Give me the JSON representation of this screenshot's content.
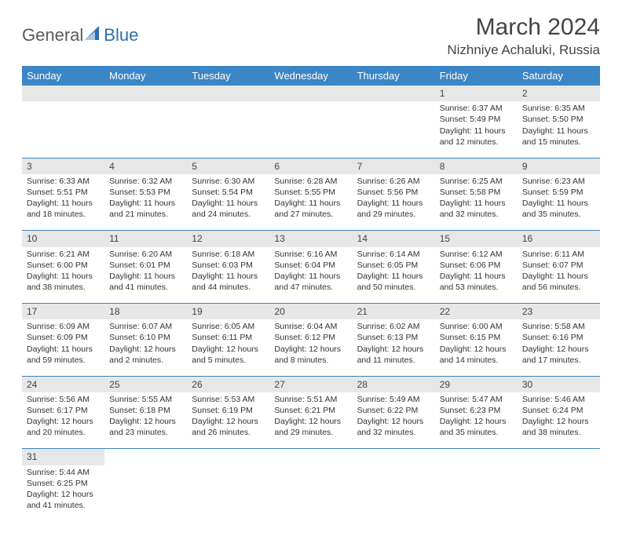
{
  "logo": {
    "text1": "General",
    "text2": "Blue"
  },
  "title": "March 2024",
  "subtitle": "Nizhniye Achaluki, Russia",
  "colors": {
    "header_bg": "#3b86c6",
    "header_text": "#ffffff",
    "daynum_bg": "#e7e7e7",
    "border": "#3b86c6",
    "logo_gray": "#5a5a5a",
    "logo_blue": "#2d6fb0"
  },
  "dayHeaders": [
    "Sunday",
    "Monday",
    "Tuesday",
    "Wednesday",
    "Thursday",
    "Friday",
    "Saturday"
  ],
  "weeks": [
    [
      null,
      null,
      null,
      null,
      null,
      {
        "n": "1",
        "sr": "Sunrise: 6:37 AM",
        "ss": "Sunset: 5:49 PM",
        "d1": "Daylight: 11 hours",
        "d2": "and 12 minutes."
      },
      {
        "n": "2",
        "sr": "Sunrise: 6:35 AM",
        "ss": "Sunset: 5:50 PM",
        "d1": "Daylight: 11 hours",
        "d2": "and 15 minutes."
      }
    ],
    [
      {
        "n": "3",
        "sr": "Sunrise: 6:33 AM",
        "ss": "Sunset: 5:51 PM",
        "d1": "Daylight: 11 hours",
        "d2": "and 18 minutes."
      },
      {
        "n": "4",
        "sr": "Sunrise: 6:32 AM",
        "ss": "Sunset: 5:53 PM",
        "d1": "Daylight: 11 hours",
        "d2": "and 21 minutes."
      },
      {
        "n": "5",
        "sr": "Sunrise: 6:30 AM",
        "ss": "Sunset: 5:54 PM",
        "d1": "Daylight: 11 hours",
        "d2": "and 24 minutes."
      },
      {
        "n": "6",
        "sr": "Sunrise: 6:28 AM",
        "ss": "Sunset: 5:55 PM",
        "d1": "Daylight: 11 hours",
        "d2": "and 27 minutes."
      },
      {
        "n": "7",
        "sr": "Sunrise: 6:26 AM",
        "ss": "Sunset: 5:56 PM",
        "d1": "Daylight: 11 hours",
        "d2": "and 29 minutes."
      },
      {
        "n": "8",
        "sr": "Sunrise: 6:25 AM",
        "ss": "Sunset: 5:58 PM",
        "d1": "Daylight: 11 hours",
        "d2": "and 32 minutes."
      },
      {
        "n": "9",
        "sr": "Sunrise: 6:23 AM",
        "ss": "Sunset: 5:59 PM",
        "d1": "Daylight: 11 hours",
        "d2": "and 35 minutes."
      }
    ],
    [
      {
        "n": "10",
        "sr": "Sunrise: 6:21 AM",
        "ss": "Sunset: 6:00 PM",
        "d1": "Daylight: 11 hours",
        "d2": "and 38 minutes."
      },
      {
        "n": "11",
        "sr": "Sunrise: 6:20 AM",
        "ss": "Sunset: 6:01 PM",
        "d1": "Daylight: 11 hours",
        "d2": "and 41 minutes."
      },
      {
        "n": "12",
        "sr": "Sunrise: 6:18 AM",
        "ss": "Sunset: 6:03 PM",
        "d1": "Daylight: 11 hours",
        "d2": "and 44 minutes."
      },
      {
        "n": "13",
        "sr": "Sunrise: 6:16 AM",
        "ss": "Sunset: 6:04 PM",
        "d1": "Daylight: 11 hours",
        "d2": "and 47 minutes."
      },
      {
        "n": "14",
        "sr": "Sunrise: 6:14 AM",
        "ss": "Sunset: 6:05 PM",
        "d1": "Daylight: 11 hours",
        "d2": "and 50 minutes."
      },
      {
        "n": "15",
        "sr": "Sunrise: 6:12 AM",
        "ss": "Sunset: 6:06 PM",
        "d1": "Daylight: 11 hours",
        "d2": "and 53 minutes."
      },
      {
        "n": "16",
        "sr": "Sunrise: 6:11 AM",
        "ss": "Sunset: 6:07 PM",
        "d1": "Daylight: 11 hours",
        "d2": "and 56 minutes."
      }
    ],
    [
      {
        "n": "17",
        "sr": "Sunrise: 6:09 AM",
        "ss": "Sunset: 6:09 PM",
        "d1": "Daylight: 11 hours",
        "d2": "and 59 minutes."
      },
      {
        "n": "18",
        "sr": "Sunrise: 6:07 AM",
        "ss": "Sunset: 6:10 PM",
        "d1": "Daylight: 12 hours",
        "d2": "and 2 minutes."
      },
      {
        "n": "19",
        "sr": "Sunrise: 6:05 AM",
        "ss": "Sunset: 6:11 PM",
        "d1": "Daylight: 12 hours",
        "d2": "and 5 minutes."
      },
      {
        "n": "20",
        "sr": "Sunrise: 6:04 AM",
        "ss": "Sunset: 6:12 PM",
        "d1": "Daylight: 12 hours",
        "d2": "and 8 minutes."
      },
      {
        "n": "21",
        "sr": "Sunrise: 6:02 AM",
        "ss": "Sunset: 6:13 PM",
        "d1": "Daylight: 12 hours",
        "d2": "and 11 minutes."
      },
      {
        "n": "22",
        "sr": "Sunrise: 6:00 AM",
        "ss": "Sunset: 6:15 PM",
        "d1": "Daylight: 12 hours",
        "d2": "and 14 minutes."
      },
      {
        "n": "23",
        "sr": "Sunrise: 5:58 AM",
        "ss": "Sunset: 6:16 PM",
        "d1": "Daylight: 12 hours",
        "d2": "and 17 minutes."
      }
    ],
    [
      {
        "n": "24",
        "sr": "Sunrise: 5:56 AM",
        "ss": "Sunset: 6:17 PM",
        "d1": "Daylight: 12 hours",
        "d2": "and 20 minutes."
      },
      {
        "n": "25",
        "sr": "Sunrise: 5:55 AM",
        "ss": "Sunset: 6:18 PM",
        "d1": "Daylight: 12 hours",
        "d2": "and 23 minutes."
      },
      {
        "n": "26",
        "sr": "Sunrise: 5:53 AM",
        "ss": "Sunset: 6:19 PM",
        "d1": "Daylight: 12 hours",
        "d2": "and 26 minutes."
      },
      {
        "n": "27",
        "sr": "Sunrise: 5:51 AM",
        "ss": "Sunset: 6:21 PM",
        "d1": "Daylight: 12 hours",
        "d2": "and 29 minutes."
      },
      {
        "n": "28",
        "sr": "Sunrise: 5:49 AM",
        "ss": "Sunset: 6:22 PM",
        "d1": "Daylight: 12 hours",
        "d2": "and 32 minutes."
      },
      {
        "n": "29",
        "sr": "Sunrise: 5:47 AM",
        "ss": "Sunset: 6:23 PM",
        "d1": "Daylight: 12 hours",
        "d2": "and 35 minutes."
      },
      {
        "n": "30",
        "sr": "Sunrise: 5:46 AM",
        "ss": "Sunset: 6:24 PM",
        "d1": "Daylight: 12 hours",
        "d2": "and 38 minutes."
      }
    ],
    [
      {
        "n": "31",
        "sr": "Sunrise: 5:44 AM",
        "ss": "Sunset: 6:25 PM",
        "d1": "Daylight: 12 hours",
        "d2": "and 41 minutes."
      },
      null,
      null,
      null,
      null,
      null,
      null
    ]
  ]
}
